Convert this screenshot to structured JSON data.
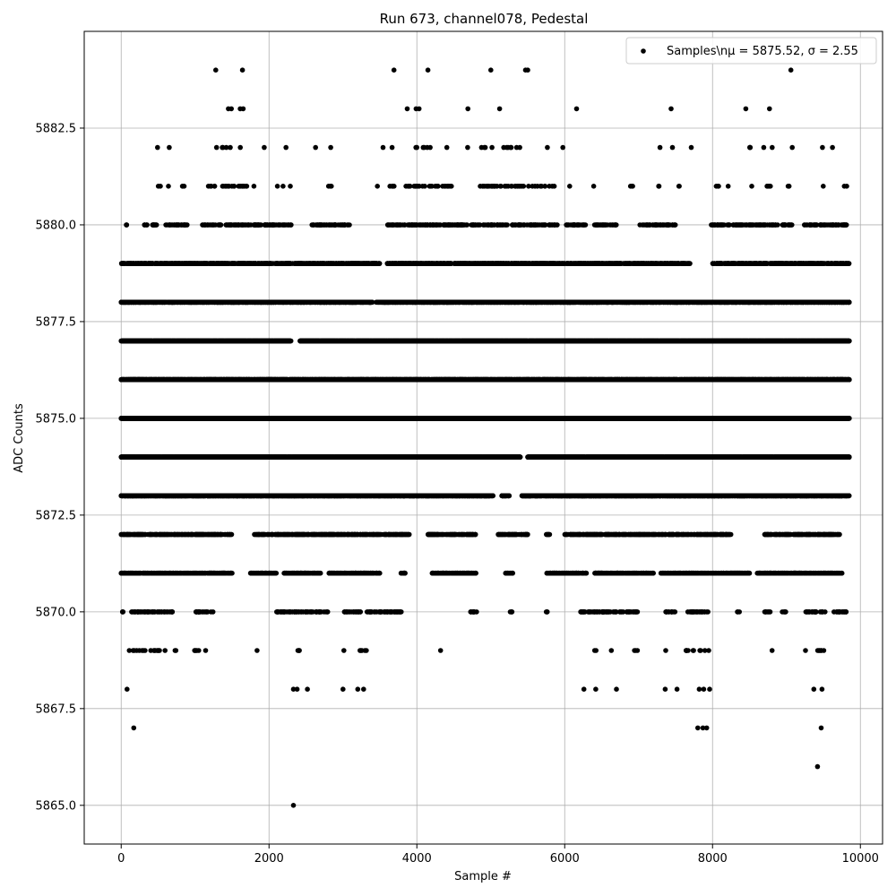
{
  "chart_data": {
    "type": "scatter",
    "title": "Run 673, channel078, Pedestal",
    "xlabel": "Sample #",
    "ylabel": "ADC Counts",
    "xlim": [
      -500,
      10300
    ],
    "ylim": [
      5864.0,
      5885.0
    ],
    "xticks": [
      0,
      2000,
      4000,
      6000,
      8000,
      10000
    ],
    "xtick_labels": [
      "0",
      "2000",
      "4000",
      "6000",
      "8000",
      "10000"
    ],
    "yticks": [
      5865.0,
      5867.5,
      5870.0,
      5872.5,
      5875.0,
      5877.5,
      5880.0,
      5882.5
    ],
    "ytick_labels": [
      "5865.0",
      "5867.5",
      "5870.0",
      "5872.5",
      "5875.0",
      "5877.5",
      "5880.0",
      "5882.5"
    ],
    "grid": true,
    "legend_position": "top-right",
    "series": [
      {
        "name": "Samples\\nμ = 5875.52, σ = 2.55",
        "marker": "circle",
        "color": "#000000",
        "points": [
          [
            170,
            5867
          ],
          [
            2330,
            5865
          ],
          [
            9420,
            5866
          ],
          [
            9470,
            5867
          ],
          [
            7800,
            5867
          ],
          [
            7870,
            5867
          ],
          [
            7920,
            5867
          ],
          [
            80,
            5868
          ],
          [
            2330,
            5868
          ],
          [
            2380,
            5868
          ],
          [
            2520,
            5868
          ],
          [
            3000,
            5868
          ],
          [
            3200,
            5868
          ],
          [
            3280,
            5868
          ],
          [
            6260,
            5868
          ],
          [
            6420,
            5868
          ],
          [
            6700,
            5868
          ],
          [
            7360,
            5868
          ],
          [
            7520,
            5868
          ],
          [
            7820,
            5868
          ],
          [
            7880,
            5868
          ],
          [
            7960,
            5868
          ],
          [
            9370,
            5868
          ],
          [
            9480,
            5868
          ],
          [
            1280,
            5884
          ],
          [
            1640,
            5884
          ],
          [
            3690,
            5884
          ],
          [
            4150,
            5884
          ],
          [
            5000,
            5884
          ],
          [
            5470,
            5884
          ],
          [
            5500,
            5884
          ],
          [
            9060,
            5884
          ],
          [
            1450,
            5883
          ],
          [
            1490,
            5883
          ],
          [
            1610,
            5883
          ],
          [
            1650,
            5883
          ],
          [
            3870,
            5883
          ],
          [
            3990,
            5883
          ],
          [
            4030,
            5883
          ],
          [
            4690,
            5883
          ],
          [
            5120,
            5883
          ],
          [
            6160,
            5883
          ],
          [
            7440,
            5883
          ],
          [
            8450,
            5883
          ],
          [
            8770,
            5883
          ]
        ],
        "bands": [
          {
            "y": 5882,
            "density": 0.045,
            "xranges": [
              [
                450,
                500
              ],
              [
                650,
                700
              ],
              [
                1280,
                1660
              ],
              [
                1930,
                1950
              ],
              [
                2220,
                2260
              ],
              [
                2620,
                2650
              ],
              [
                2830,
                2850
              ],
              [
                3540,
                3560
              ],
              [
                3650,
                3700
              ],
              [
                3870,
                4280
              ],
              [
                4400,
                4420
              ],
              [
                4640,
                4700
              ],
              [
                4840,
                5540
              ],
              [
                5750,
                5770
              ],
              [
                5970,
                6020
              ],
              [
                7220,
                7290
              ],
              [
                7440,
                7470
              ],
              [
                7700,
                7730
              ],
              [
                8500,
                8820
              ],
              [
                9060,
                9080
              ],
              [
                9480,
                9500
              ],
              [
                9610,
                9630
              ]
            ]
          },
          {
            "y": 5881,
            "density": 0.13,
            "xranges": [
              [
                500,
                540
              ],
              [
                630,
                660
              ],
              [
                810,
                880
              ],
              [
                1180,
                1700
              ],
              [
                1780,
                1800
              ],
              [
                2100,
                2120
              ],
              [
                2180,
                2200
              ],
              [
                2280,
                2300
              ],
              [
                2800,
                2880
              ],
              [
                3460,
                3480
              ],
              [
                3580,
                3700
              ],
              [
                3830,
                4500
              ],
              [
                4850,
                5880
              ],
              [
                6050,
                6070
              ],
              [
                6380,
                6400
              ],
              [
                6860,
                6920
              ],
              [
                7220,
                7280
              ],
              [
                7500,
                7550
              ],
              [
                8040,
                8110
              ],
              [
                8200,
                8220
              ],
              [
                8520,
                8540
              ],
              [
                8700,
                8820
              ],
              [
                9000,
                9060
              ],
              [
                9480,
                9500
              ],
              [
                9780,
                9820
              ]
            ]
          },
          {
            "y": 5880,
            "density": 0.3,
            "xranges": [
              [
                60,
                90
              ],
              [
                300,
                480
              ],
              [
                600,
                900
              ],
              [
                1100,
                2300
              ],
              [
                2580,
                3100
              ],
              [
                3580,
                5900
              ],
              [
                6000,
                6300
              ],
              [
                6400,
                6700
              ],
              [
                7000,
                7500
              ],
              [
                7970,
                9100
              ],
              [
                9200,
                9820
              ]
            ]
          },
          {
            "y": 5879,
            "density": 0.6,
            "xranges": [
              [
                0,
                3500
              ],
              [
                3600,
                7700
              ],
              [
                8000,
                9850
              ]
            ]
          },
          {
            "y": 5878,
            "density": 1.2,
            "xranges": [
              [
                0,
                3400
              ],
              [
                3450,
                9850
              ]
            ]
          },
          {
            "y": 5877,
            "density": 2.0,
            "xranges": [
              [
                0,
                2300
              ],
              [
                2420,
                9850
              ]
            ]
          },
          {
            "y": 5876,
            "density": 2.5,
            "xranges": [
              [
                0,
                9850
              ]
            ]
          },
          {
            "y": 5875,
            "density": 2.5,
            "xranges": [
              [
                0,
                9850
              ]
            ]
          },
          {
            "y": 5874,
            "density": 2.5,
            "xranges": [
              [
                0,
                5400
              ],
              [
                5500,
                9850
              ]
            ]
          },
          {
            "y": 5873,
            "density": 2.0,
            "xranges": [
              [
                0,
                5030
              ],
              [
                5150,
                5250
              ],
              [
                5420,
                9850
              ]
            ]
          },
          {
            "y": 5872,
            "density": 0.55,
            "xranges": [
              [
                0,
                1500
              ],
              [
                1800,
                3900
              ],
              [
                4150,
                4800
              ],
              [
                5100,
                5500
              ],
              [
                5750,
                5800
              ],
              [
                6000,
                7480
              ],
              [
                7500,
                8250
              ],
              [
                8700,
                9730
              ]
            ]
          },
          {
            "y": 5871,
            "density": 0.55,
            "xranges": [
              [
                0,
                1500
              ],
              [
                1750,
                2100
              ],
              [
                2200,
                2700
              ],
              [
                2800,
                3500
              ],
              [
                3780,
                3850
              ],
              [
                4200,
                4800
              ],
              [
                5200,
                5300
              ],
              [
                5750,
                6300
              ],
              [
                6400,
                7200
              ],
              [
                7300,
                8500
              ],
              [
                8600,
                9750
              ]
            ]
          },
          {
            "y": 5870,
            "density": 0.25,
            "xranges": [
              [
                0,
                30
              ],
              [
                130,
                700
              ],
              [
                1000,
                1250
              ],
              [
                2100,
                2800
              ],
              [
                3000,
                3800
              ],
              [
                4700,
                4820
              ],
              [
                5250,
                5300
              ],
              [
                5750,
                5780
              ],
              [
                6150,
                7000
              ],
              [
                7360,
                7500
              ],
              [
                7650,
                7950
              ],
              [
                8330,
                8370
              ],
              [
                8700,
                8800
              ],
              [
                8940,
                9000
              ],
              [
                9250,
                9530
              ],
              [
                9620,
                9820
              ]
            ]
          },
          {
            "y": 5869,
            "density": 0.1,
            "xranges": [
              [
                100,
                600
              ],
              [
                700,
                770
              ],
              [
                960,
                1150
              ],
              [
                1830,
                1850
              ],
              [
                2320,
                2450
              ],
              [
                3000,
                3020
              ],
              [
                3200,
                3350
              ],
              [
                4320,
                4340
              ],
              [
                6400,
                6450
              ],
              [
                6620,
                6640
              ],
              [
                6940,
                7020
              ],
              [
                7360,
                7380
              ],
              [
                7630,
                7960
              ],
              [
                8790,
                8810
              ],
              [
                9250,
                9270
              ],
              [
                9360,
                9550
              ]
            ]
          }
        ]
      }
    ]
  }
}
